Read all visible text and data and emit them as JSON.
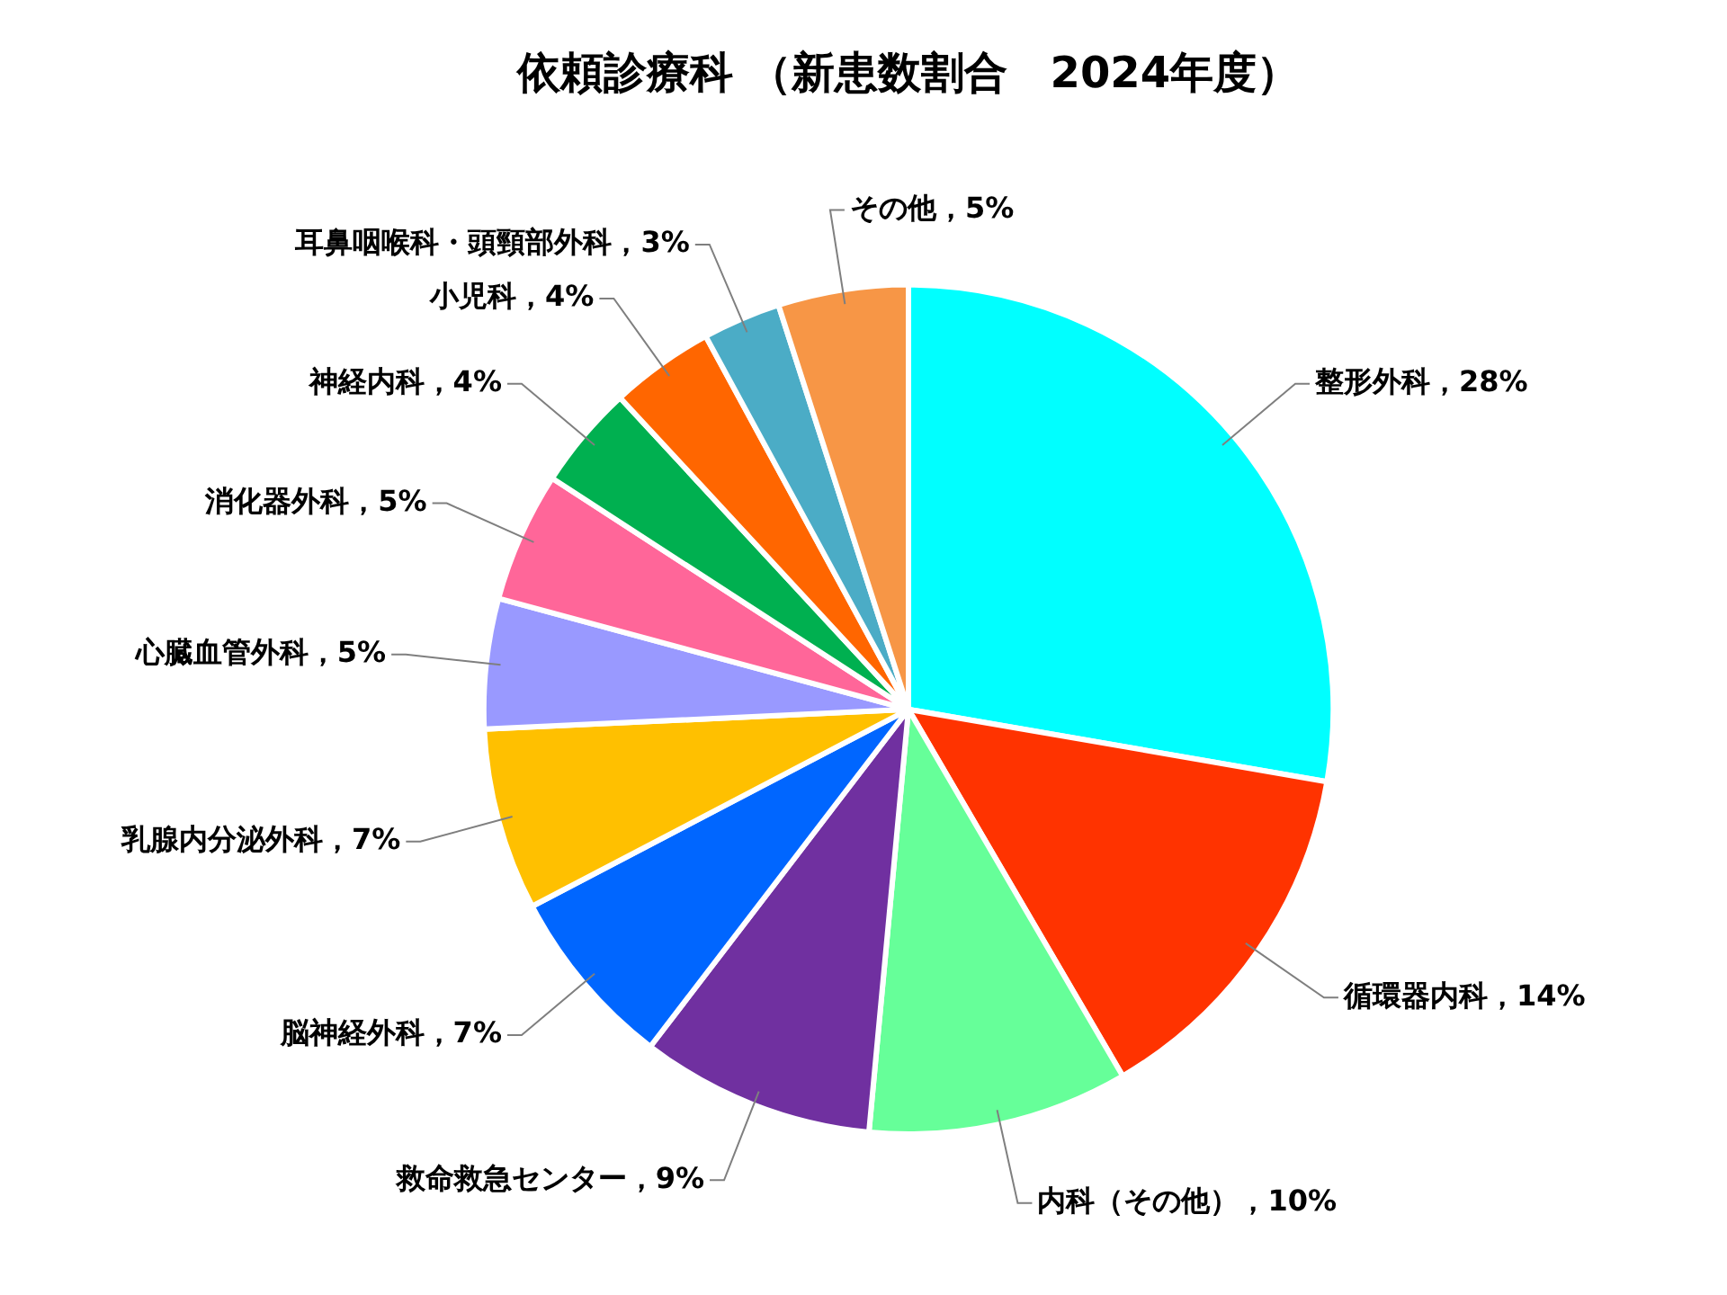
{
  "chart_data": {
    "type": "pie",
    "title": "依頼診療科 （新患数割合　2024年度）",
    "categories": [
      "整形外科",
      "循環器内科",
      "内科（その他）",
      "救命救急センター",
      "脳神経外科",
      "乳腺内分泌外科",
      "心臓血管外科",
      "消化器外科",
      "神経内科",
      "小児科",
      "耳鼻咽喉科・頭頸部外科",
      "その他"
    ],
    "values": [
      28,
      14,
      10,
      9,
      7,
      7,
      5,
      5,
      4,
      4,
      3,
      5
    ],
    "colors": [
      "#00ffff",
      "#ff3300",
      "#66ff99",
      "#7030a0",
      "#0066ff",
      "#ffc000",
      "#9999ff",
      "#ff6699",
      "#00b050",
      "#ff6600",
      "#4bacc6",
      "#f79646"
    ],
    "value_labels": [
      "28%",
      "14%",
      "10%",
      "9%",
      "7%",
      "7%",
      "5%",
      "5%",
      "4%",
      "4%",
      "3%",
      "5%"
    ]
  }
}
